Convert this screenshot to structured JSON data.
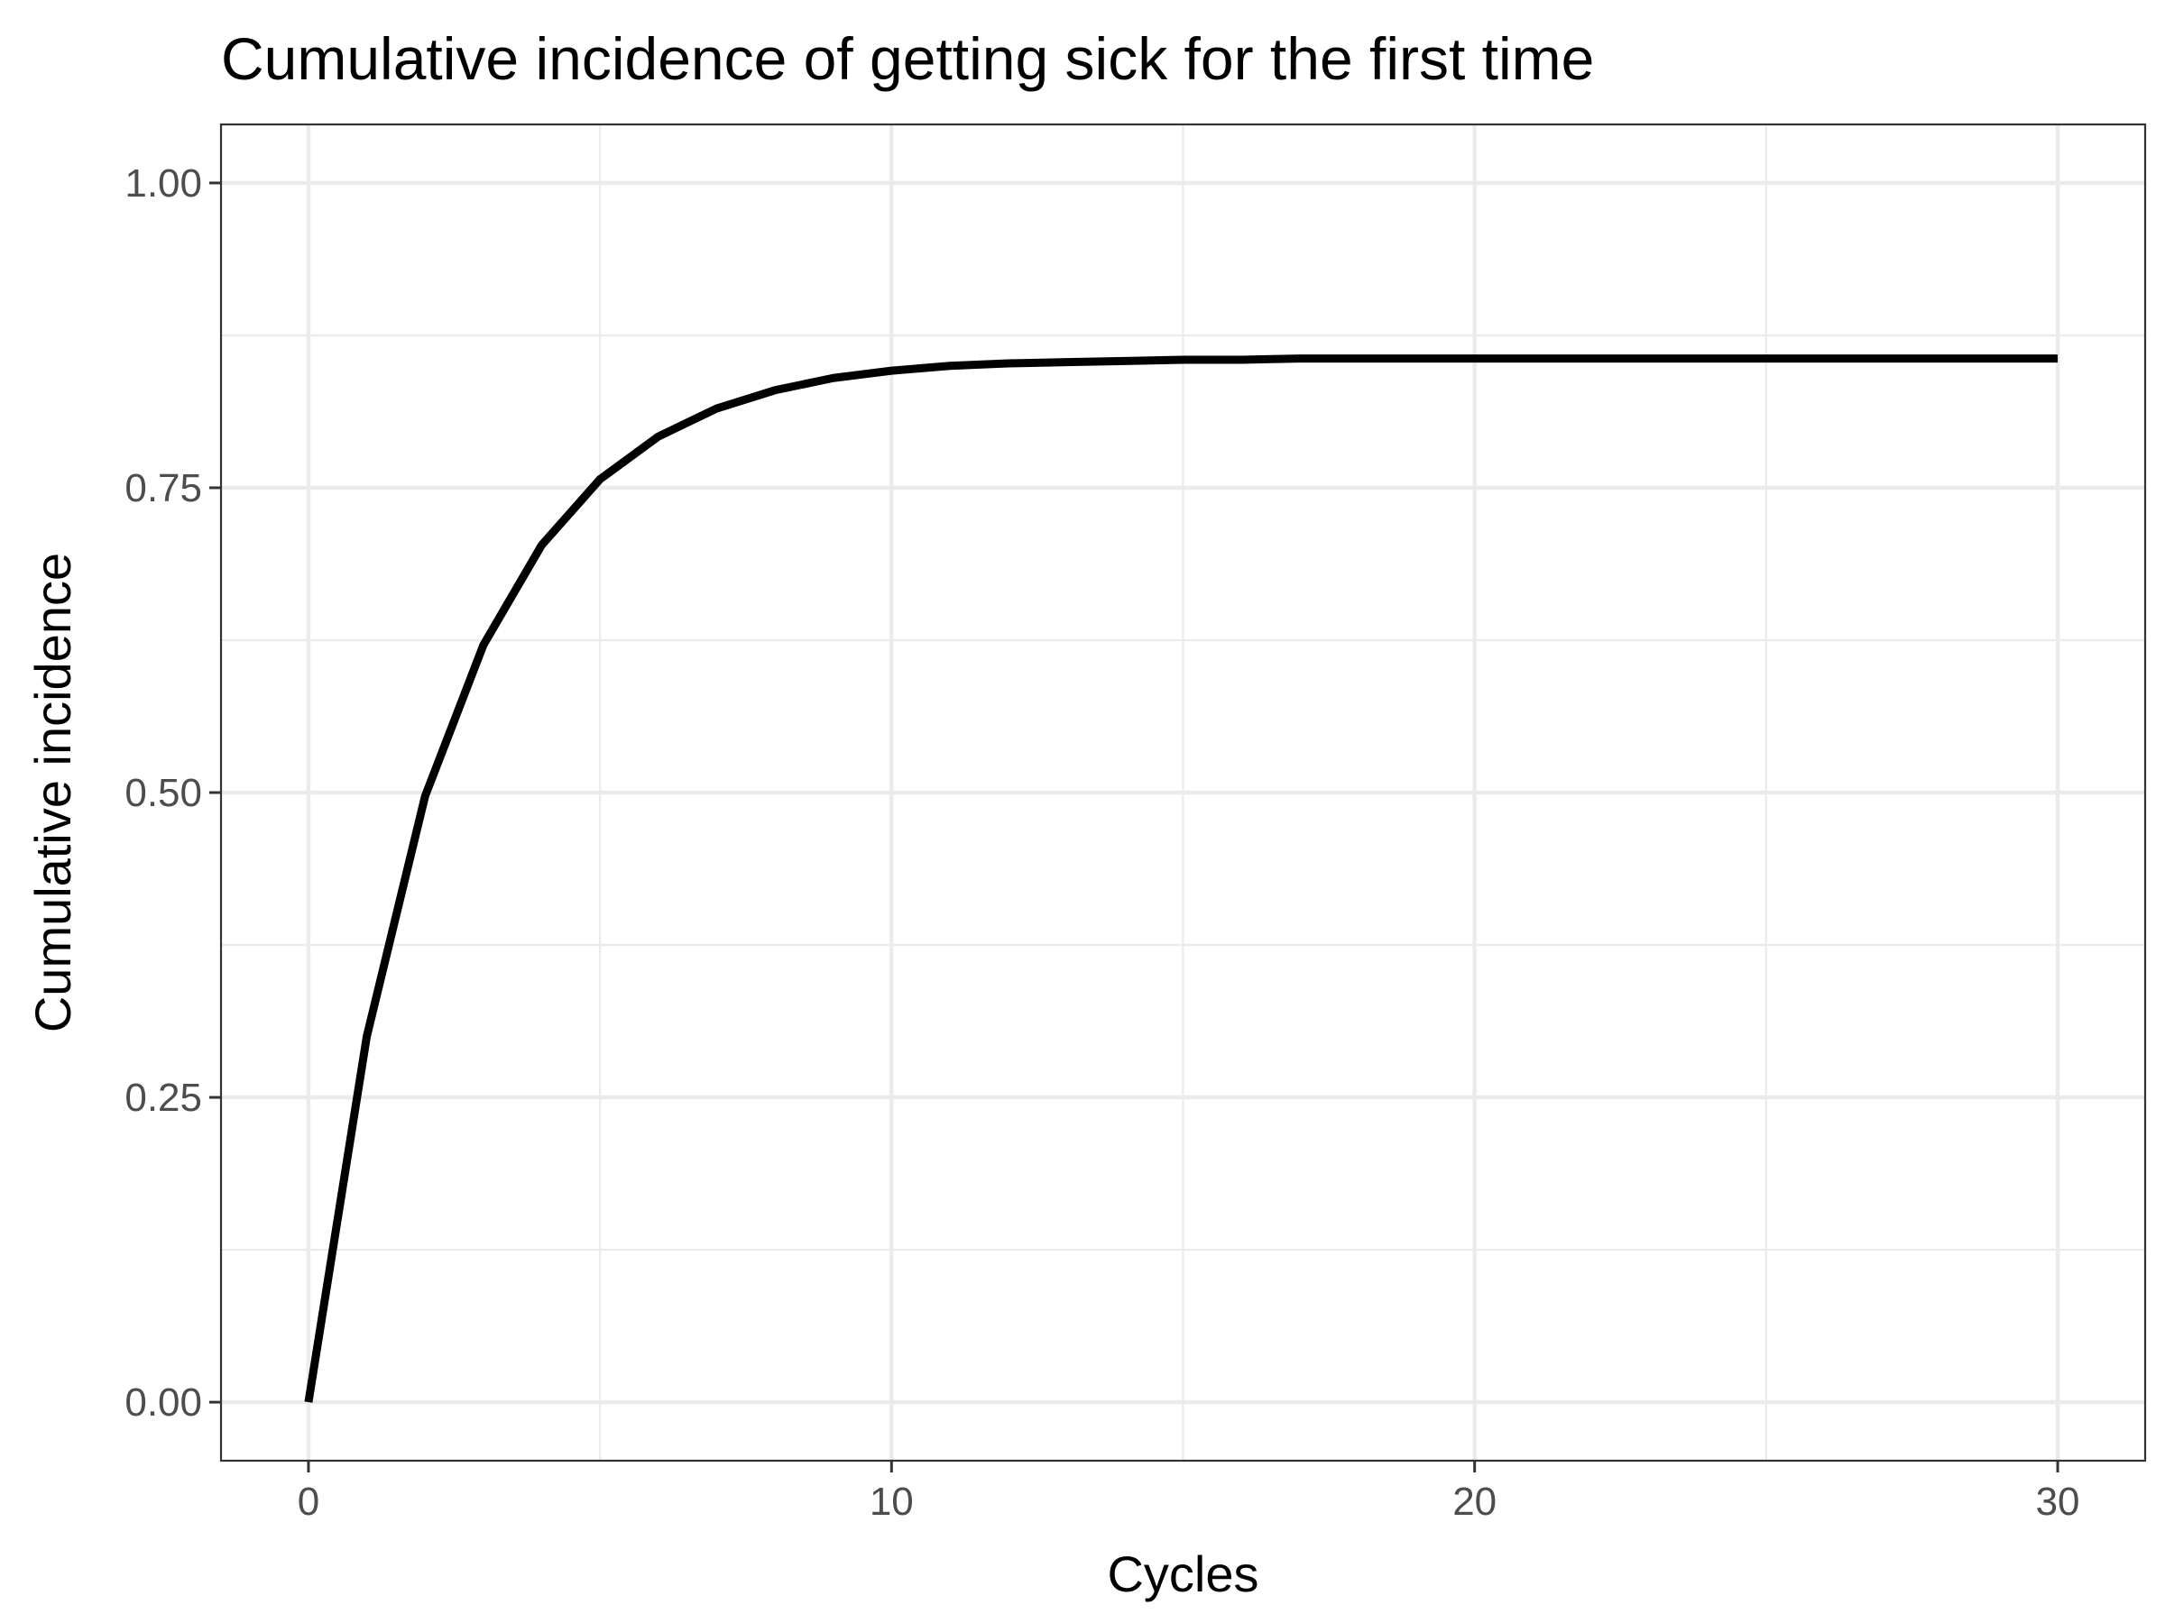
{
  "chart_data": {
    "type": "line",
    "title": "Cumulative incidence of getting sick for the first time",
    "xlabel": "Cycles",
    "ylabel": "Cumulative incidence",
    "xlim": [
      -1.5,
      31.5
    ],
    "ylim": [
      -0.048,
      1.048
    ],
    "x_ticks": [
      0,
      10,
      20,
      30
    ],
    "x_tick_labels": [
      "0",
      "10",
      "20",
      "30"
    ],
    "x_minor_ticks": [
      5,
      15,
      25
    ],
    "y_ticks": [
      0,
      0.25,
      0.5,
      0.75,
      1.0
    ],
    "y_tick_labels": [
      "0.00",
      "0.25",
      "0.50",
      "0.75",
      "1.00"
    ],
    "y_minor_ticks": [
      0.125,
      0.375,
      0.625,
      0.875
    ],
    "grid": true,
    "legend": "none",
    "series": [
      {
        "color": "#000000",
        "x": [
          0,
          1,
          2,
          3,
          4,
          5,
          6,
          7,
          8,
          9,
          10,
          11,
          12,
          13,
          14,
          15,
          16,
          17,
          18,
          19,
          20,
          21,
          22,
          23,
          24,
          25,
          26,
          27,
          28,
          29,
          30
        ],
        "y": [
          0.0,
          0.3,
          0.497,
          0.621,
          0.703,
          0.757,
          0.792,
          0.815,
          0.83,
          0.84,
          0.846,
          0.85,
          0.852,
          0.853,
          0.854,
          0.855,
          0.855,
          0.856,
          0.856,
          0.856,
          0.856,
          0.856,
          0.856,
          0.856,
          0.856,
          0.856,
          0.856,
          0.856,
          0.856,
          0.856,
          0.856
        ]
      }
    ]
  }
}
